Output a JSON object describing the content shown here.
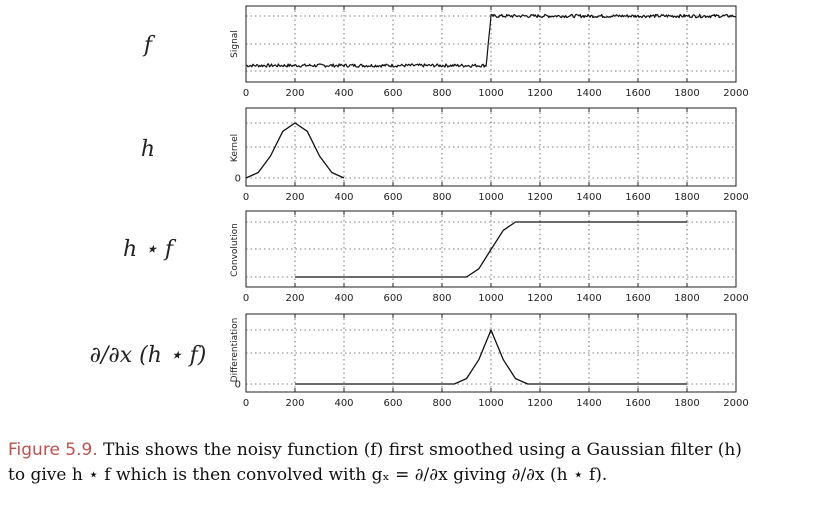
{
  "chart_data": [
    {
      "type": "line",
      "row_label": "f",
      "ylabel": "Signal",
      "xlim": [
        0,
        2000
      ],
      "xticks": [
        0,
        200,
        400,
        600,
        800,
        1000,
        1200,
        1400,
        1600,
        1800,
        2000
      ],
      "grid": true,
      "series": [
        {
          "x": [
            0,
            980,
            1000,
            2000
          ],
          "y": [
            0.1,
            0.1,
            1.0,
            1.0
          ],
          "noisy": true
        }
      ]
    },
    {
      "type": "line",
      "row_label": "h",
      "ylabel": "Kernel",
      "xlim": [
        0,
        2000
      ],
      "xticks": [
        0,
        200,
        400,
        600,
        800,
        1000,
        1200,
        1400,
        1600,
        1800,
        2000
      ],
      "yticks": [
        0
      ],
      "grid": true,
      "series": [
        {
          "x": [
            0,
            50,
            100,
            150,
            200,
            250,
            300,
            350,
            400
          ],
          "y": [
            0.0,
            0.1,
            0.4,
            0.85,
            1.0,
            0.85,
            0.4,
            0.1,
            0.0
          ]
        }
      ]
    },
    {
      "type": "line",
      "row_label": "h ⋆ f",
      "ylabel": "Convolution",
      "xlim": [
        0,
        2000
      ],
      "xticks": [
        0,
        200,
        400,
        600,
        800,
        1000,
        1200,
        1400,
        1600,
        1800,
        2000
      ],
      "grid": true,
      "series": [
        {
          "x": [
            200,
            900,
            950,
            1000,
            1050,
            1100,
            1800
          ],
          "y": [
            0.0,
            0.0,
            0.15,
            0.5,
            0.85,
            1.0,
            1.0
          ]
        }
      ]
    },
    {
      "type": "line",
      "row_label": "∂/∂x (h ⋆ f)",
      "ylabel": "Differentiation",
      "xlim": [
        0,
        2000
      ],
      "xticks": [
        0,
        200,
        400,
        600,
        800,
        1000,
        1200,
        1400,
        1600,
        1800,
        2000
      ],
      "yticks": [
        0
      ],
      "grid": true,
      "series": [
        {
          "x": [
            200,
            850,
            900,
            950,
            1000,
            1050,
            1100,
            1150,
            1800
          ],
          "y": [
            0.0,
            0.0,
            0.1,
            0.45,
            1.0,
            0.45,
            0.1,
            0.0,
            0.0
          ]
        }
      ]
    }
  ],
  "caption": {
    "label": "Figure 5.9.",
    "line1": " This shows the noisy function (f) first smoothed using a Gaussian filter (h)",
    "line2": "to give h ⋆ f which is then convolved with gₓ = ∂/∂x giving ∂/∂x (h ⋆ f)."
  }
}
